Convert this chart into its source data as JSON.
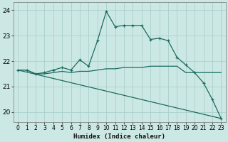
{
  "xlabel": "Humidex (Indice chaleur)",
  "bg_color": "#cce8e4",
  "grid_color": "#aad0cc",
  "line_color": "#1a6b60",
  "xlim": [
    -0.5,
    23.5
  ],
  "ylim": [
    19.6,
    24.3
  ],
  "yticks": [
    20,
    21,
    22,
    23,
    24
  ],
  "xticks": [
    0,
    1,
    2,
    3,
    4,
    5,
    6,
    7,
    8,
    9,
    10,
    11,
    12,
    13,
    14,
    15,
    16,
    17,
    18,
    19,
    20,
    21,
    22,
    23
  ],
  "series1_x": [
    0,
    1,
    2,
    3,
    4,
    5,
    6,
    7,
    8,
    9,
    10,
    11,
    12,
    13,
    14,
    15,
    16,
    17,
    18,
    19,
    20,
    21,
    22,
    23
  ],
  "series1_y": [
    21.65,
    21.65,
    21.5,
    21.55,
    21.65,
    21.75,
    21.65,
    22.05,
    21.8,
    22.8,
    23.95,
    23.35,
    23.4,
    23.4,
    23.4,
    22.85,
    22.9,
    22.8,
    22.15,
    21.85,
    21.55,
    21.15,
    20.5,
    19.75
  ],
  "series2_x": [
    0,
    1,
    2,
    3,
    4,
    5,
    6,
    7,
    8,
    9,
    10,
    11,
    12,
    13,
    14,
    15,
    16,
    17,
    18,
    19,
    20,
    21,
    22,
    23
  ],
  "series2_y": [
    21.65,
    21.65,
    21.5,
    21.5,
    21.55,
    21.6,
    21.55,
    21.6,
    21.6,
    21.65,
    21.7,
    21.7,
    21.75,
    21.75,
    21.75,
    21.8,
    21.8,
    21.8,
    21.8,
    21.55,
    21.55,
    21.55,
    21.55,
    21.55
  ],
  "series3_x": [
    0,
    23
  ],
  "series3_y": [
    21.65,
    19.75
  ]
}
